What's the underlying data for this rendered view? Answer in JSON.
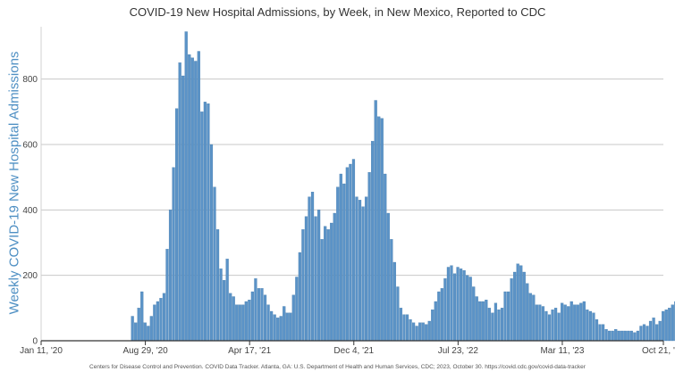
{
  "chart_data": {
    "type": "bar",
    "title": "COVID-19 New Hospital Admissions, by Week, in New Mexico, Reported to CDC",
    "ylabel": "Weekly COVID-19 New Hospital Admissions",
    "xlabel": "",
    "source": "Centers for Disease Control and Prevention. COVID Data Tracker. Atlanta, GA: U.S. Department of Health and Human Services, CDC; 2023, October 30. https://covid.cdc.gov/covid-data-tracker",
    "ylim": [
      0,
      960
    ],
    "yticks": [
      0,
      200,
      400,
      600,
      800
    ],
    "xlim": [
      "2020-01-11",
      "2023-10-21"
    ],
    "xticks": [
      {
        "date": "2020-01-11",
        "label": "Jan 11, '20"
      },
      {
        "date": "2020-08-29",
        "label": "Aug 29, '20"
      },
      {
        "date": "2021-04-17",
        "label": "Apr 17, '21"
      },
      {
        "date": "2021-12-04",
        "label": "Dec 4, '21"
      },
      {
        "date": "2022-07-23",
        "label": "Jul 23, '22"
      },
      {
        "date": "2023-03-11",
        "label": "Mar 11, '23"
      },
      {
        "date": "2023-10-21",
        "label": "Oct 21, '23"
      }
    ],
    "grid": true,
    "bar_color": "#5b93c7",
    "first_week": "2020-08-01",
    "values": [
      75,
      55,
      100,
      150,
      55,
      45,
      75,
      110,
      120,
      130,
      145,
      280,
      400,
      530,
      710,
      850,
      810,
      945,
      875,
      865,
      855,
      885,
      700,
      730,
      725,
      600,
      470,
      340,
      220,
      185,
      250,
      145,
      135,
      110,
      110,
      110,
      120,
      125,
      150,
      190,
      160,
      160,
      140,
      110,
      90,
      80,
      70,
      75,
      105,
      85,
      85,
      140,
      195,
      270,
      340,
      380,
      440,
      455,
      380,
      400,
      310,
      350,
      340,
      360,
      390,
      470,
      510,
      480,
      530,
      540,
      555,
      440,
      430,
      410,
      440,
      515,
      610,
      735,
      685,
      680,
      510,
      390,
      310,
      240,
      165,
      100,
      80,
      80,
      65,
      55,
      45,
      55,
      55,
      50,
      60,
      95,
      120,
      150,
      160,
      190,
      225,
      230,
      205,
      225,
      220,
      215,
      200,
      195,
      165,
      135,
      120,
      120,
      125,
      100,
      85,
      115,
      95,
      100,
      150,
      150,
      190,
      210,
      235,
      230,
      210,
      175,
      145,
      140,
      110,
      110,
      105,
      90,
      80,
      95,
      100,
      85,
      115,
      110,
      105,
      120,
      110,
      110,
      115,
      120,
      95,
      90,
      85,
      65,
      50,
      50,
      35,
      30,
      30,
      35,
      30,
      30,
      30,
      30,
      30,
      25,
      30,
      45,
      50,
      45,
      60,
      70,
      50,
      60,
      90,
      95,
      100,
      110,
      120
    ]
  }
}
